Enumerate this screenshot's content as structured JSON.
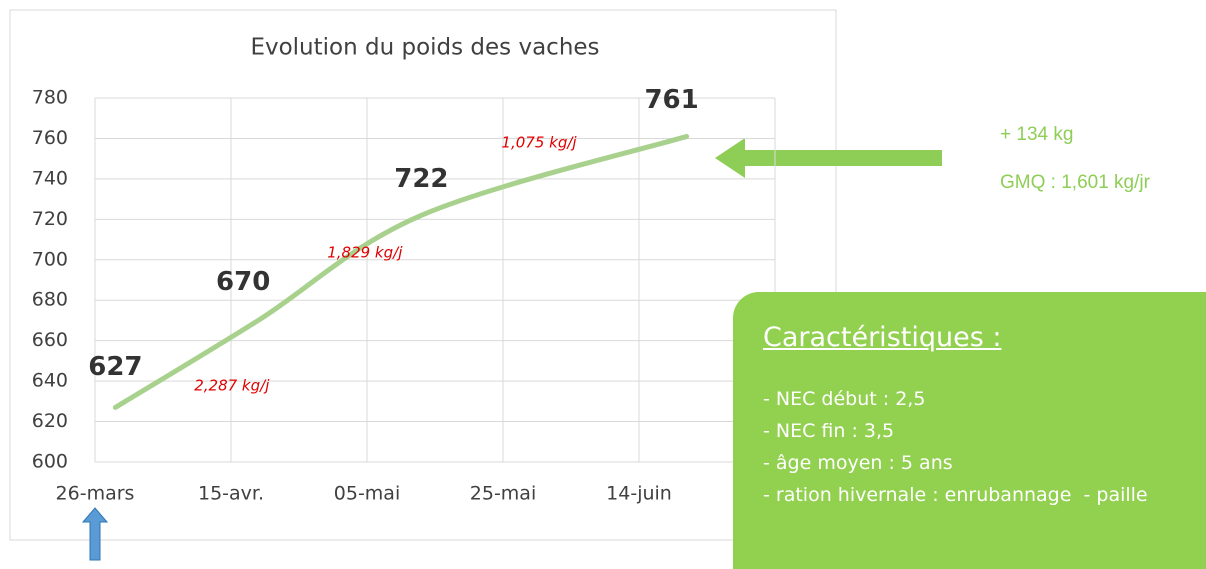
{
  "chart_data": {
    "type": "line",
    "title": "Evolution du poids des vaches",
    "x": [
      3,
      24,
      48,
      87
    ],
    "values": [
      627,
      670,
      722,
      761
    ],
    "color": "#a9d18e",
    "xlim": [
      0,
      100
    ],
    "xticks": [
      {
        "value": 0,
        "label": "26-mars"
      },
      {
        "value": 20,
        "label": "15-avr."
      },
      {
        "value": 40,
        "label": "05-mai"
      },
      {
        "value": 60,
        "label": "25-mai"
      },
      {
        "value": 80,
        "label": "14-juin"
      }
    ],
    "ylim": [
      600,
      780
    ],
    "yticks": [
      600,
      620,
      640,
      660,
      680,
      700,
      720,
      740,
      760,
      780
    ],
    "grid": true,
    "segment_labels": [
      "2,287 kg/j",
      "1,829 kg/j",
      "1,075 kg/j"
    ],
    "side_notes": [
      "+ 134 kg",
      "GMQ : 1,601 kg/jr"
    ]
  },
  "panel": {
    "title": "Caractéristiques :",
    "items": [
      "- NEC début : 2,5",
      "- NEC fin : 3,5",
      "- âge moyen : 5 ans",
      "- ration hivernale : enrubannage  - paille"
    ]
  }
}
